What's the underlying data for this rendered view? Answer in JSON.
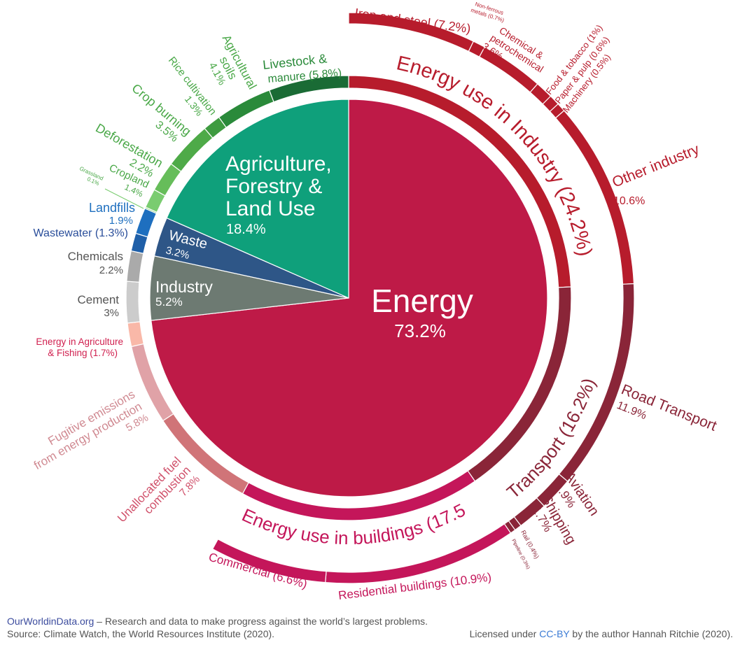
{
  "chart_data": {
    "type": "pie",
    "variant": "sunburst",
    "unit": "%",
    "sectors": [
      {
        "name": "Energy",
        "value": 73.2,
        "color": "#be1a47",
        "subsectors": [
          {
            "name": "Energy use in Industry",
            "value": 24.2,
            "color": "#b71c2c",
            "subsectors": [
              {
                "name": "Iron and steel",
                "value": 7.2
              },
              {
                "name": "Non-ferrous metals",
                "value": 0.7
              },
              {
                "name": "Chemical & petrochemical",
                "value": 3.6
              },
              {
                "name": "Food & tobacco",
                "value": 1
              },
              {
                "name": "Paper & pulp",
                "value": 0.6
              },
              {
                "name": "Machinery",
                "value": 0.5
              },
              {
                "name": "Other industry",
                "value": 10.6
              }
            ]
          },
          {
            "name": "Transport",
            "value": 16.2,
            "color": "#8a2538",
            "subsectors": [
              {
                "name": "Road Transport",
                "value": 11.9
              },
              {
                "name": "Aviation",
                "value": 1.9
              },
              {
                "name": "Shipping",
                "value": 1.7
              },
              {
                "name": "Rail",
                "value": 0.4
              },
              {
                "name": "Pipeline",
                "value": 0.3
              }
            ]
          },
          {
            "name": "Energy use in buildings",
            "value": 17.5,
            "color": "#c4165a",
            "subsectors": [
              {
                "name": "Residential buildings",
                "value": 10.9
              },
              {
                "name": "Commercial",
                "value": 6.6
              }
            ]
          },
          {
            "name": "Unallocated fuel combustion",
            "value": 7.8,
            "color": "#d07478"
          },
          {
            "name": "Fugitive emissions from energy production",
            "value": 5.8,
            "color": "#e0a2a7"
          },
          {
            "name": "Energy in Agriculture & Fishing",
            "value": 1.7,
            "color": "#f9b8a8"
          }
        ]
      },
      {
        "name": "Industry",
        "value": 5.2,
        "color": "#6d7a72",
        "subsectors": [
          {
            "name": "Cement",
            "value": 3,
            "color": "#cccccc"
          },
          {
            "name": "Chemicals",
            "value": 2.2,
            "color": "#aaaaaa"
          }
        ]
      },
      {
        "name": "Waste",
        "value": 3.2,
        "color": "#2e5687",
        "subsectors": [
          {
            "name": "Wastewater",
            "value": 1.3,
            "color": "#1f5fa8"
          },
          {
            "name": "Landfills",
            "value": 1.9,
            "color": "#1e6fbf"
          }
        ]
      },
      {
        "name": "Agriculture, Forestry & Land Use",
        "value": 18.4,
        "color": "#0fa07b",
        "subsectors": [
          {
            "name": "Grassland",
            "value": 0.1,
            "color": "#7acc70"
          },
          {
            "name": "Cropland",
            "value": 1.4,
            "color": "#7acc70"
          },
          {
            "name": "Deforestation",
            "value": 2.2,
            "color": "#66bd5a"
          },
          {
            "name": "Crop burning",
            "value": 3.5,
            "color": "#4eaa48"
          },
          {
            "name": "Rice cultivation",
            "value": 1.3,
            "color": "#3e9b40"
          },
          {
            "name": "Agricultural soils",
            "value": 4.1,
            "color": "#2a8a3a"
          },
          {
            "name": "Livestock & manure",
            "value": 5.8,
            "color": "#1a6b35"
          }
        ]
      }
    ]
  },
  "labels": {
    "energy": "Energy",
    "energy_pct": "73.2%",
    "afolu_1": "Agriculture,",
    "afolu_2": "Forestry &",
    "afolu_3": "Land Use",
    "afolu_pct": "18.4%",
    "waste": "Waste",
    "waste_pct": "3.2%",
    "industry": "Industry",
    "industry_pct": "5.2%",
    "energy_industry": "Energy use in Industry (24.2%)",
    "transport": "Transport (16.2%)",
    "buildings": "Energy use in buildings (17.5%)",
    "iron": "Iron and steel (7.2%)",
    "nonferrous_1": "Non-ferrous",
    "nonferrous_2": "metals (0.7%)",
    "chem_1": "Chemical &",
    "chem_2": "petrochemical",
    "chem_3": "3.6%",
    "food": "Food & tobacco (1%)",
    "paper": "Paper & pulp (0.6%)",
    "machinery": "Machinery (0.5%)",
    "other_ind": "Other industry",
    "other_ind_pct": "10.6%",
    "road": "Road Transport",
    "road_pct": "11.9%",
    "aviation": "Aviation",
    "aviation_pct": "1.9%",
    "shipping": "Shipping",
    "shipping_pct": "1.7%",
    "rail": "Rail (0.4%)",
    "pipeline": "Pipeline (0.3%)",
    "residential": "Residential buildings (10.9%)",
    "commercial": "Commercial (6.6%)",
    "unalloc_1": "Unallocated fuel",
    "unalloc_2": "combustion",
    "unalloc_3": "7.8%",
    "fug_1": "Fugitive emissions",
    "fug_2": "from energy production",
    "fug_3": "5.8%",
    "eagri_1": "Energy in Agriculture",
    "eagri_2": "& Fishing (1.7%)",
    "cement": "Cement",
    "cement_pct": "3%",
    "chemicals": "Chemicals",
    "chemicals_pct": "2.2%",
    "wastewater": "Wastewater (1.3%)",
    "landfills": "Landfills",
    "landfills_pct": "1.9%",
    "grassland": "Grassland",
    "grassland_pct": "0.1%",
    "cropland": "Cropland",
    "cropland_pct": "1.4%",
    "deforestation": "Deforestation",
    "deforestation_pct": "2.2%",
    "cropburn": "Crop burning",
    "cropburn_pct": "3.5%",
    "rice": "Rice cultivation",
    "rice_pct": "1.3%",
    "soils_1": "Agricultural",
    "soils_2": "soils",
    "soils_3": "4.1%",
    "livestock_1": "Livestock &",
    "livestock_2": "manure (5.8%)"
  },
  "footer": {
    "site": "OurWorldinData.org",
    "tagline": " – Research and data to make progress against the world’s largest problems.",
    "source": "Source: Climate Watch, the World Resources Institute (2020).",
    "license_pre": "Licensed under ",
    "license_link": "CC-BY",
    "license_post": " by the author Hannah Ritchie  (2020)."
  }
}
